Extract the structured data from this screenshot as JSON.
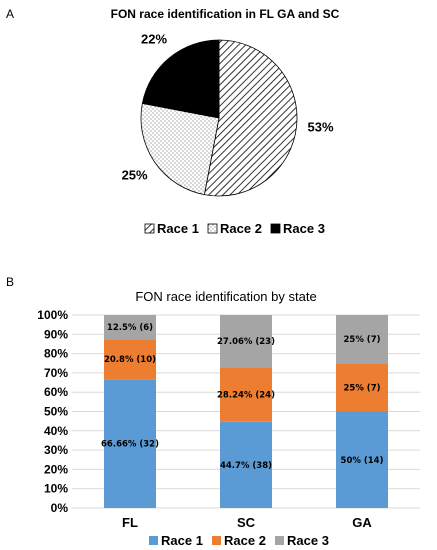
{
  "panel_a_letter": "A",
  "panel_b_letter": "B",
  "colors": {
    "race1_bar": "#5b9bd5",
    "race2_bar": "#ed7d31",
    "race3_bar": "#a5a5a5",
    "race3_pie": "#000000",
    "gridline": "#d9d9d9"
  },
  "chart_data": [
    {
      "type": "pie",
      "title": "FON race identification in FL GA and SC",
      "series": [
        {
          "name": "Race 1",
          "value": 53,
          "label": "53%",
          "fill": "diagonal-hatch"
        },
        {
          "name": "Race 2",
          "value": 25,
          "label": "25%",
          "fill": "dotted"
        },
        {
          "name": "Race 3",
          "value": 22,
          "label": "22%",
          "fill": "solid-black"
        }
      ],
      "legend": [
        "Race 1",
        "Race 2",
        "Race 3"
      ],
      "legend_position": "bottom"
    },
    {
      "type": "bar",
      "stacked": true,
      "percent": true,
      "title": "FON race identification by state",
      "categories": [
        "FL",
        "SC",
        "GA"
      ],
      "y_ticks": [
        "0%",
        "10%",
        "20%",
        "30%",
        "40%",
        "50%",
        "60%",
        "70%",
        "80%",
        "90%",
        "100%"
      ],
      "ylim": [
        0,
        100
      ],
      "grid": true,
      "series": [
        {
          "name": "Race 1",
          "values": [
            66.66,
            44.7,
            50
          ],
          "labels": [
            "66.66% (32)",
            "44.7% (38)",
            "50% (14)"
          ]
        },
        {
          "name": "Race 2",
          "values": [
            20.8,
            28.24,
            25
          ],
          "labels": [
            "20.8% (10)",
            "28.24% (24)",
            "25% (7)"
          ]
        },
        {
          "name": "Race 3",
          "values": [
            12.5,
            27.06,
            25
          ],
          "labels": [
            "12.5% (6)",
            "27.06% (23)",
            "25% (7)"
          ]
        }
      ],
      "legend_position": "bottom"
    }
  ]
}
